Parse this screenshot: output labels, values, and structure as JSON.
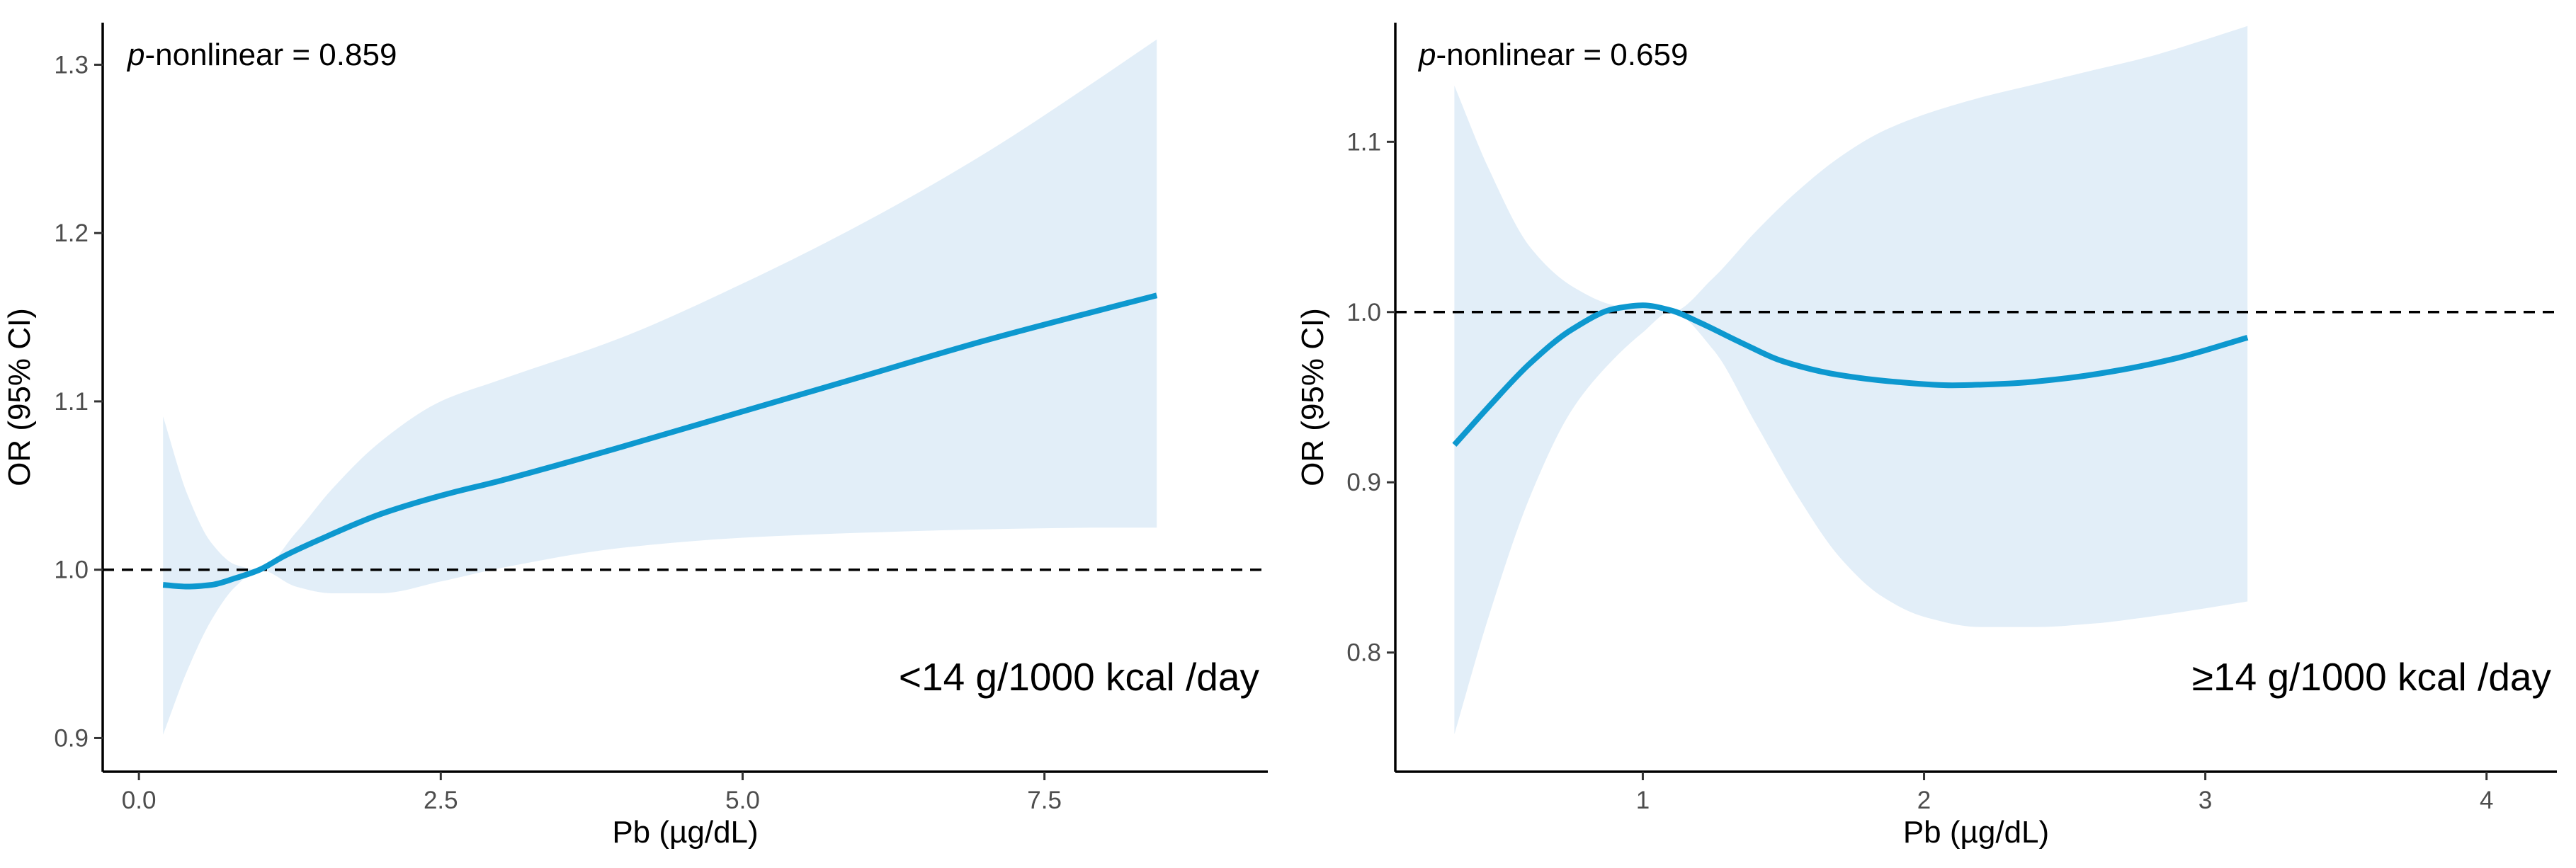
{
  "chart_data": [
    {
      "type": "line",
      "annotation_prefix": "p",
      "annotation_suffix": "-nonlinear = 0.859",
      "group_label": "<14 g/1000 kcal /day",
      "xlabel": "Pb (µg/dL)",
      "ylabel": "OR (95% CI)",
      "xlim": [
        -0.3,
        9.35
      ],
      "ylim": [
        0.88,
        1.325
      ],
      "xticks": [
        0,
        2.5,
        5,
        7.5
      ],
      "xtick_labels": [
        "0.0",
        "2.5",
        "5.0",
        "7.5"
      ],
      "yticks": [
        0.9,
        1.0,
        1.1,
        1.2,
        1.3
      ],
      "ytick_labels": [
        "0.9",
        "1.0",
        "1.1",
        "1.2",
        "1.3"
      ],
      "reference_line": 1.0,
      "colors": {
        "line": "#0d98cf",
        "band": "#e2eef8",
        "ref": "#000000",
        "axis": "#000000"
      },
      "series": [
        {
          "name": "OR",
          "x": [
            0.2,
            0.4,
            0.6,
            0.8,
            1.0,
            1.2,
            1.5,
            2.0,
            2.5,
            3.0,
            4.0,
            5.0,
            6.0,
            7.0,
            8.0,
            8.43
          ],
          "y": [
            0.991,
            0.99,
            0.991,
            0.995,
            1.0,
            1.008,
            1.018,
            1.033,
            1.044,
            1.053,
            1.073,
            1.094,
            1.115,
            1.136,
            1.155,
            1.163
          ]
        },
        {
          "name": "Lower 95% CI",
          "x": [
            0.2,
            0.4,
            0.6,
            0.8,
            1.0,
            1.3,
            1.6,
            2.0,
            2.5,
            3.0,
            4.0,
            5.0,
            6.0,
            7.0,
            8.0,
            8.43
          ],
          "y": [
            0.902,
            0.94,
            0.97,
            0.99,
            1.0,
            0.99,
            0.986,
            0.986,
            0.993,
            1.001,
            1.013,
            1.019,
            1.022,
            1.024,
            1.025,
            1.025
          ]
        },
        {
          "name": "Upper 95% CI",
          "x": [
            0.2,
            0.4,
            0.6,
            0.8,
            1.0,
            1.3,
            1.6,
            2.0,
            2.5,
            3.0,
            4.0,
            5.0,
            6.0,
            7.0,
            8.0,
            8.43
          ],
          "y": [
            1.091,
            1.045,
            1.016,
            1.003,
            1.0,
            1.022,
            1.048,
            1.076,
            1.1,
            1.113,
            1.138,
            1.17,
            1.206,
            1.247,
            1.294,
            1.315
          ]
        }
      ]
    },
    {
      "type": "line",
      "annotation_prefix": "p",
      "annotation_suffix": "-nonlinear = 0.659",
      "group_label": "≥14 g/1000 kcal /day",
      "xlabel": "Pb (µg/dL)",
      "ylabel": "OR (95% CI)",
      "xlim": [
        0.12,
        4.25
      ],
      "ylim": [
        0.73,
        1.17
      ],
      "xticks": [
        1,
        2,
        3,
        4
      ],
      "xtick_labels": [
        "1",
        "2",
        "3",
        "4"
      ],
      "yticks": [
        0.8,
        0.9,
        1.0,
        1.1
      ],
      "ytick_labels": [
        "0.8",
        "0.9",
        "1.0",
        "1.1"
      ],
      "reference_line": 1.0,
      "colors": {
        "line": "#0d98cf",
        "band": "#e2eef8",
        "ref": "#000000",
        "axis": "#000000"
      },
      "series": [
        {
          "name": "OR",
          "x": [
            0.33,
            0.45,
            0.6,
            0.75,
            0.9,
            1.0,
            1.1,
            1.2,
            1.35,
            1.5,
            1.7,
            1.9,
            2.1,
            2.3,
            2.5,
            2.7,
            2.9,
            3.15
          ],
          "y": [
            0.922,
            0.944,
            0.97,
            0.99,
            1.002,
            1.004,
            1.001,
            0.994,
            0.982,
            0.971,
            0.963,
            0.959,
            0.957,
            0.958,
            0.961,
            0.966,
            0.973,
            0.985
          ]
        },
        {
          "name": "Lower 95% CI",
          "x": [
            0.33,
            0.45,
            0.6,
            0.75,
            0.9,
            1.0,
            1.1,
            1.25,
            1.4,
            1.55,
            1.7,
            1.85,
            2.0,
            2.2,
            2.4,
            2.6,
            2.8,
            3.0,
            3.15
          ],
          "y": [
            0.752,
            0.82,
            0.892,
            0.943,
            0.973,
            0.988,
            1.0,
            0.978,
            0.935,
            0.892,
            0.856,
            0.833,
            0.821,
            0.815,
            0.815,
            0.817,
            0.821,
            0.826,
            0.83
          ]
        },
        {
          "name": "Upper 95% CI",
          "x": [
            0.33,
            0.45,
            0.6,
            0.75,
            0.9,
            1.0,
            1.1,
            1.25,
            1.4,
            1.55,
            1.7,
            1.85,
            2.0,
            2.2,
            2.4,
            2.6,
            2.8,
            3.0,
            3.15
          ],
          "y": [
            1.133,
            1.085,
            1.038,
            1.015,
            1.004,
            1.002,
            1.0,
            1.02,
            1.047,
            1.071,
            1.091,
            1.106,
            1.116,
            1.126,
            1.134,
            1.142,
            1.15,
            1.16,
            1.168
          ]
        }
      ]
    }
  ]
}
